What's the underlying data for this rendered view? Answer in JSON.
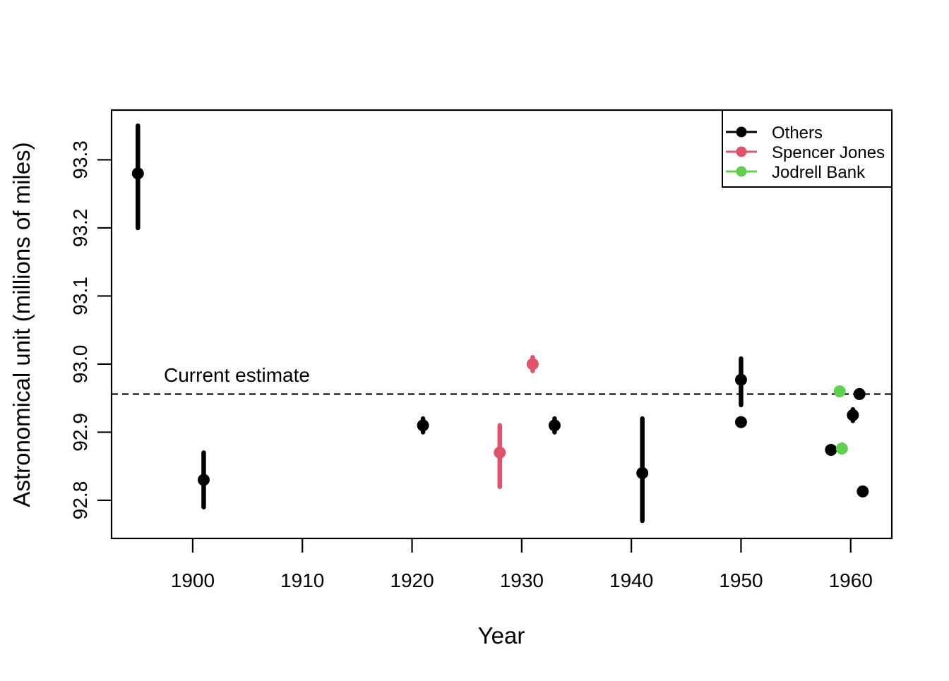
{
  "figure": {
    "background": "#ffffff",
    "annotation_label": "Current estimate"
  },
  "chart_data": {
    "type": "scatter",
    "title": "",
    "xlabel": "Year",
    "ylabel": "Astronomical unit (millions of miles)",
    "xlim": [
      1892.6,
      1963.75
    ],
    "ylim": [
      92.744,
      93.373
    ],
    "x_ticks": [
      1900,
      1910,
      1920,
      1930,
      1940,
      1950,
      1960
    ],
    "y_ticks": [
      "92.8",
      "92.9",
      "93.0",
      "93.1",
      "93.2",
      "93.3"
    ],
    "grid": "off",
    "legend_position": "top-right",
    "reference_line": {
      "value": 92.956,
      "label": "Current estimate",
      "style": "dashed",
      "color": "#000000"
    },
    "error_bars": true,
    "series": [
      {
        "name": "Others",
        "color": "#000000",
        "points": [
          {
            "x": 1895,
            "y": 93.28,
            "lo": 93.2,
            "hi": 93.35
          },
          {
            "x": 1901,
            "y": 92.83,
            "lo": 92.79,
            "hi": 92.87
          },
          {
            "x": 1921,
            "y": 92.91,
            "lo": 92.9,
            "hi": 92.92
          },
          {
            "x": 1933,
            "y": 92.91,
            "lo": 92.9,
            "hi": 92.92
          },
          {
            "x": 1941,
            "y": 92.84,
            "lo": 92.77,
            "hi": 92.92
          },
          {
            "x": 1950,
            "y": 92.977,
            "lo": 92.94,
            "hi": 93.008
          },
          {
            "x": 1950,
            "y": 92.9148,
            "lo": 92.9107,
            "hi": 92.919
          },
          {
            "x": 1958.2,
            "y": 92.874,
            "lo": 92.873,
            "hi": 92.875
          },
          {
            "x": 1960.2,
            "y": 92.9251,
            "lo": 92.9166,
            "hi": 92.9335
          },
          {
            "x": 1960.8,
            "y": 92.956,
            "lo": 92.9558,
            "hi": 92.9562
          },
          {
            "x": 1961.1,
            "y": 92.813,
            "lo": 92.81,
            "hi": 92.816
          }
        ]
      },
      {
        "name": "Spencer Jones",
        "color": "#DF536B",
        "points": [
          {
            "x": 1928,
            "y": 92.87,
            "lo": 92.82,
            "hi": 92.91
          },
          {
            "x": 1931,
            "y": 93.0,
            "lo": 92.99,
            "hi": 93.01
          }
        ]
      },
      {
        "name": "Jodrell Bank",
        "color": "#61D04F",
        "points": [
          {
            "x": 1959.0,
            "y": 92.96,
            "lo": 92.958,
            "hi": 92.962
          },
          {
            "x": 1959.2,
            "y": 92.876,
            "lo": 92.871,
            "hi": 92.882
          }
        ]
      }
    ]
  }
}
